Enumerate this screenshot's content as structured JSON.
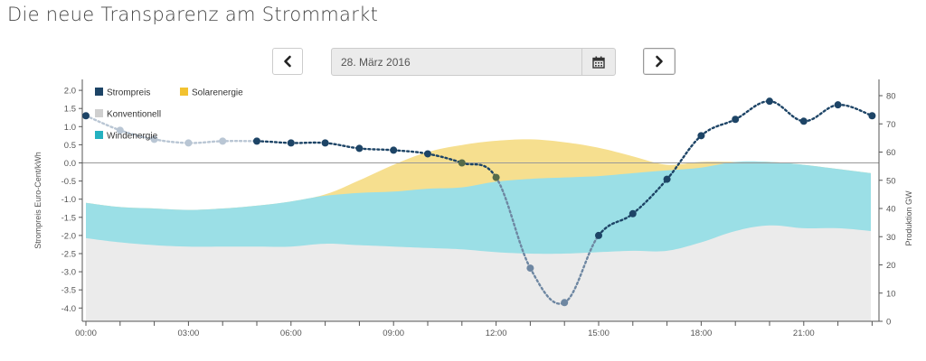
{
  "page": {
    "title": "Die neue Transparenz am Strommarkt"
  },
  "controls": {
    "date": "28. März 2016",
    "prev_icon": "chevron-left-icon",
    "next_icon": "chevron-right-icon",
    "calendar_icon": "calendar-icon"
  },
  "chart_data": {
    "type": "area",
    "x_hours": [
      0,
      1,
      2,
      3,
      4,
      5,
      6,
      7,
      8,
      9,
      10,
      11,
      12,
      13,
      14,
      15,
      16,
      17,
      18,
      19,
      20,
      21,
      22,
      23
    ],
    "x_tick_labels": [
      "00:00",
      "03:00",
      "06:00",
      "09:00",
      "12:00",
      "15:00",
      "18:00",
      "21:00"
    ],
    "x_tick_hours": [
      0,
      3,
      6,
      9,
      12,
      15,
      18,
      21
    ],
    "left_axis": {
      "label": "Strompreis Euro-Cent/kWh",
      "range": [
        -4.5,
        2.2
      ],
      "ticks": [
        "2.0",
        "1.5",
        "1.0",
        "0.5",
        "0.0",
        "-0.5",
        "-1.0",
        "-1.5",
        "-2.0",
        "-2.5",
        "-3.0",
        "-3.5",
        "-4.0"
      ],
      "tick_values": [
        2.0,
        1.5,
        1.0,
        0.5,
        0.0,
        -0.5,
        -1.0,
        -1.5,
        -2.0,
        -2.5,
        -3.0,
        -3.5,
        -4.0
      ]
    },
    "right_axis": {
      "label": "Produktion GW",
      "range": [
        0,
        84
      ],
      "ticks": [
        "80",
        "70",
        "60",
        "50",
        "40",
        "30",
        "20",
        "10",
        "0"
      ],
      "tick_values": [
        80,
        70,
        60,
        50,
        40,
        30,
        20,
        10,
        0
      ]
    },
    "legend": [
      {
        "name": "Strompreis",
        "color": "#1d4466"
      },
      {
        "name": "Solarenergie",
        "color": "#f2c230"
      },
      {
        "name": "Konventionell",
        "color": "#cfcfcf"
      },
      {
        "name": "Windenergie",
        "color": "#24b1c0"
      }
    ],
    "series": [
      {
        "name": "Konventionell",
        "axis": "right",
        "values": [
          29.5,
          28,
          27,
          26.5,
          26.5,
          26.5,
          26.5,
          27.5,
          27,
          26.5,
          26,
          25.5,
          24.5,
          24,
          24,
          24.5,
          25,
          25,
          28,
          32,
          34,
          33,
          33,
          32
        ]
      },
      {
        "name": "Windenergie",
        "axis": "right",
        "values": [
          42,
          40.5,
          40,
          39.5,
          40,
          41,
          42.5,
          44.5,
          45.5,
          46,
          47,
          47.5,
          49.5,
          50.5,
          51,
          51.5,
          52.5,
          53.5,
          54.5,
          56.5,
          56.5,
          55.5,
          54,
          52.5
        ]
      },
      {
        "name": "Solarenergie",
        "axis": "right",
        "values": [
          42,
          40.5,
          40,
          39.5,
          40,
          41,
          42.5,
          45,
          50,
          55.5,
          60,
          62.5,
          64,
          64.5,
          63.5,
          61.5,
          58.5,
          55.5,
          56.5,
          56.5,
          56.5,
          55.5,
          54,
          52.5
        ]
      },
      {
        "name": "Strompreis",
        "axis": "left",
        "values": [
          1.3,
          0.9,
          0.65,
          0.55,
          0.6,
          0.6,
          0.55,
          0.55,
          0.4,
          0.35,
          0.25,
          0.0,
          -0.4,
          -2.9,
          -3.85,
          -2.0,
          -1.4,
          -0.45,
          0.75,
          1.2,
          1.7,
          1.15,
          1.6,
          1.3
        ]
      }
    ],
    "forecast_until_hour": 5,
    "zero_line": true
  }
}
